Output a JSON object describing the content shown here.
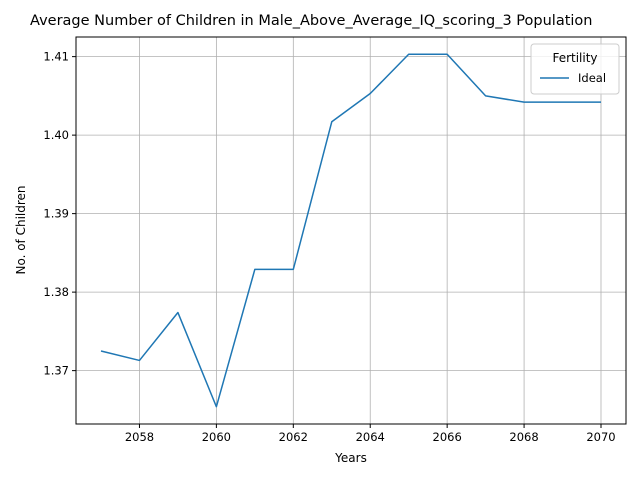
{
  "chart_data": {
    "type": "line",
    "title": "Average Number of Children in Male_Above_Average_IQ_scoring_3 Population",
    "xlabel": "Years",
    "ylabel": "No. of Children",
    "x": [
      2057,
      2058,
      2059,
      2060,
      2061,
      2062,
      2063,
      2064,
      2065,
      2066,
      2067,
      2068,
      2069,
      2070
    ],
    "series": [
      {
        "name": "Ideal",
        "color": "#1f77b4",
        "values": [
          1.3725,
          1.3713,
          1.3774,
          1.3654,
          1.3829,
          1.3829,
          1.4017,
          1.4053,
          1.4103,
          1.4103,
          1.405,
          1.4042,
          1.4042,
          1.4042
        ]
      }
    ],
    "xlim": [
      2056.35,
      2070.65
    ],
    "ylim": [
      1.3632,
      1.4125
    ],
    "xticks": [
      "2058",
      "2060",
      "2062",
      "2064",
      "2066",
      "2068",
      "2070"
    ],
    "yticks": [
      "1.37",
      "1.38",
      "1.39",
      "1.40",
      "1.41"
    ],
    "legend": {
      "title": "Fertility",
      "placement": "top-right"
    },
    "grid": true
  }
}
